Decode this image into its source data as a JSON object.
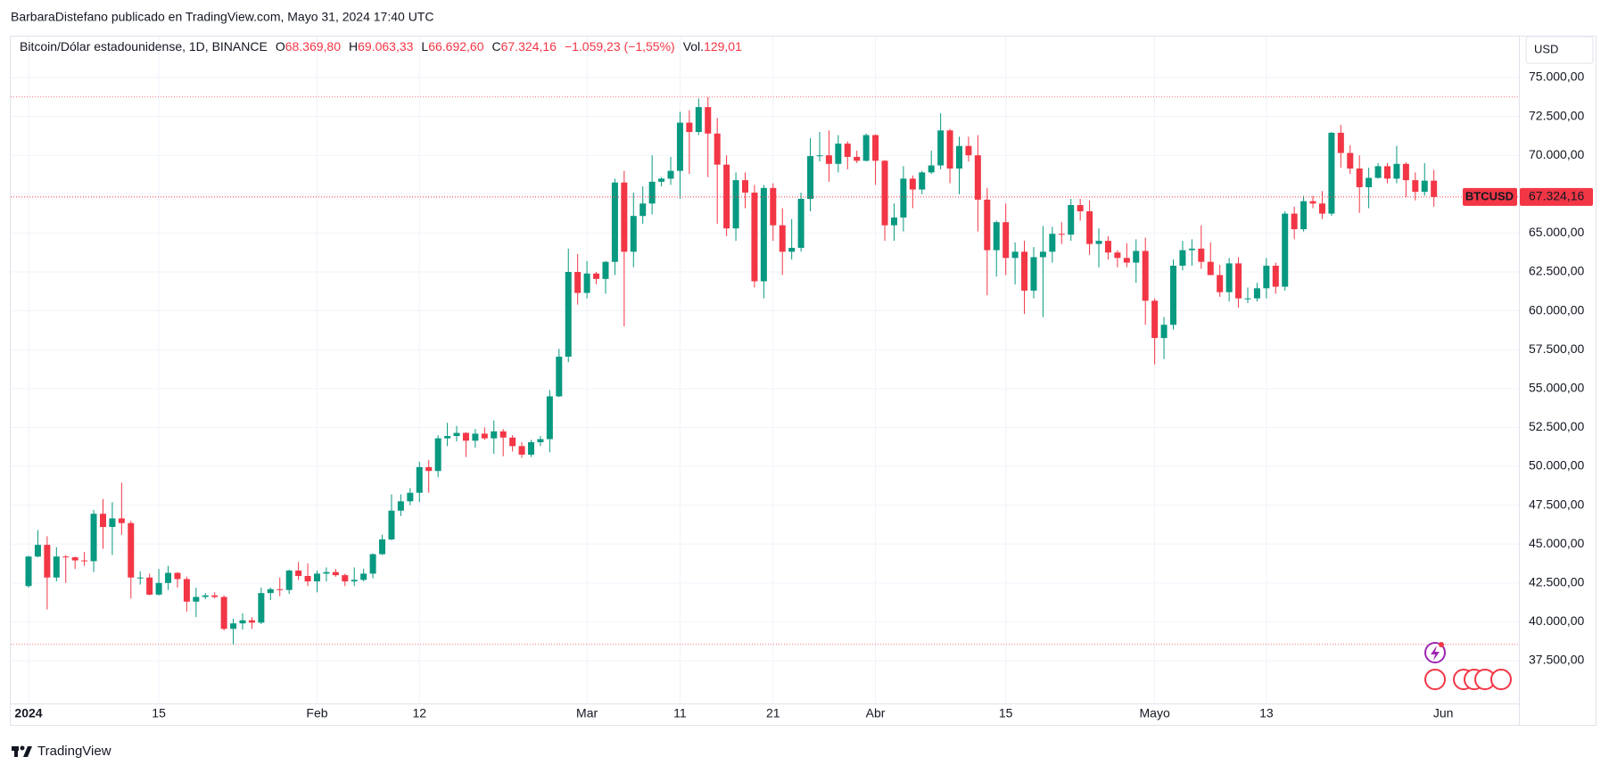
{
  "header": {
    "attribution": "BarbaraDistefano publicado en TradingView.com, Mayo 31, 2024 17:40 UTC",
    "symbol": "Bitcoin/Dólar estadounidense, 1D, BINANCE",
    "fields": [
      {
        "key": "O",
        "value": "68.369,80"
      },
      {
        "key": "H",
        "value": "69.063,33"
      },
      {
        "key": "L",
        "value": "66.692,60"
      },
      {
        "key": "C",
        "value": "67.324,16"
      }
    ],
    "change": "−1.059,23 (−1,55%)",
    "volume_key": "Vol.",
    "volume": "129,01",
    "currency": "USD",
    "footer_brand": "TradingView"
  },
  "chart_data": {
    "type": "candlestick",
    "up_color": "#089981",
    "down_color": "#f23645",
    "ylim": [
      34750,
      77350
    ],
    "yticks": [
      {
        "value": 37500,
        "label": "37.500,00"
      },
      {
        "value": 40000,
        "label": "40.000,00"
      },
      {
        "value": 42500,
        "label": "42.500,00"
      },
      {
        "value": 45000,
        "label": "45.000,00"
      },
      {
        "value": 47500,
        "label": "47.500,00"
      },
      {
        "value": 50000,
        "label": "50.000,00"
      },
      {
        "value": 52500,
        "label": "52.500,00"
      },
      {
        "value": 55000,
        "label": "55.000,00"
      },
      {
        "value": 57500,
        "label": "57.500,00"
      },
      {
        "value": 60000,
        "label": "60.000,00"
      },
      {
        "value": 62500,
        "label": "62.500,00"
      },
      {
        "value": 65000,
        "label": "65.000,00"
      },
      {
        "value": 67500,
        "label": "67.500,00"
      },
      {
        "value": 70000,
        "label": "70.000,00"
      },
      {
        "value": 72500,
        "label": "72.500,00"
      },
      {
        "value": 75000,
        "label": "75.000,00"
      }
    ],
    "grid": true,
    "symbol_tag": "BTCUSD",
    "last_price": {
      "value": 67324.16,
      "label": "67.324,16"
    },
    "x_axis_end_label": "Jun",
    "categories": [
      "2024",
      null,
      null,
      null,
      null,
      null,
      null,
      null,
      null,
      null,
      null,
      null,
      null,
      null,
      "15",
      null,
      null,
      null,
      null,
      null,
      null,
      null,
      null,
      null,
      null,
      null,
      null,
      null,
      null,
      null,
      null,
      "Feb",
      null,
      null,
      null,
      null,
      null,
      null,
      null,
      null,
      null,
      null,
      "12",
      null,
      null,
      null,
      null,
      null,
      null,
      null,
      null,
      null,
      null,
      null,
      null,
      null,
      null,
      null,
      null,
      null,
      "Mar",
      null,
      null,
      null,
      null,
      null,
      null,
      null,
      null,
      null,
      "11",
      null,
      null,
      null,
      null,
      null,
      null,
      null,
      null,
      null,
      "21",
      null,
      null,
      null,
      null,
      null,
      null,
      null,
      null,
      null,
      null,
      "Abr",
      null,
      null,
      null,
      null,
      null,
      null,
      null,
      null,
      null,
      null,
      null,
      null,
      null,
      "15",
      null,
      null,
      null,
      null,
      null,
      null,
      null,
      null,
      null,
      null,
      null,
      null,
      null,
      null,
      null,
      "Mayo",
      null,
      null,
      null,
      null,
      null,
      null,
      null,
      null,
      null,
      null,
      null,
      "13",
      null,
      null,
      null,
      null,
      null,
      null,
      null,
      null,
      null,
      null,
      null,
      null,
      null,
      null,
      null,
      null,
      null,
      null
    ],
    "open": [
      42300,
      44200,
      44950,
      42850,
      44200,
      44150,
      43950,
      43900,
      46950,
      46100,
      46650,
      46350,
      42850,
      42850,
      41750,
      42500,
      43150,
      42750,
      41300,
      41600,
      41700,
      41600,
      39550,
      39900,
      40100,
      39950,
      41850,
      42100,
      42050,
      43300,
      42950,
      42600,
      43100,
      43200,
      43000,
      42600,
      42700,
      43100,
      44350,
      45300,
      47150,
      47750,
      48300,
      49950,
      49700,
      51800,
      51950,
      52150,
      51650,
      52100,
      51800,
      52250,
      51850,
      51300,
      50750,
      51550,
      51750,
      54500,
      57050,
      62500,
      61150,
      62400,
      62050,
      63150,
      68250,
      63800,
      66100,
      66900,
      68300,
      68500,
      69000,
      72100,
      71500,
      73100,
      71400,
      69400,
      65300,
      68400,
      67600,
      61900,
      67900,
      65500,
      63800,
      64050,
      67200,
      69950,
      70000,
      69450,
      70750,
      69900,
      69650,
      71300,
      69650,
      65500,
      66000,
      68500,
      67800,
      68900,
      69350,
      71600,
      69150,
      70600,
      70000,
      67150,
      63900,
      65700,
      63400,
      63800,
      61300,
      63450,
      63800,
      64950,
      64900,
      66800,
      66400,
      64300,
      64500,
      63750,
      63400,
      63100,
      63850,
      60650,
      58250,
      59100,
      62900,
      63900,
      64000,
      63150,
      62300,
      61200,
      63050,
      60800,
      60800,
      61450,
      62900,
      61550,
      66250,
      65250,
      67050,
      66900,
      66250,
      71450,
      70150,
      69150,
      67950,
      68550,
      69300,
      68500,
      69450,
      68400,
      67650,
      68369.8
    ],
    "high": [
      44250,
      45900,
      45500,
      44800,
      44300,
      44200,
      44500,
      47200,
      47900,
      47700,
      48950,
      46500,
      43250,
      43100,
      43400,
      43600,
      43200,
      42900,
      42200,
      41850,
      41900,
      41700,
      40200,
      40550,
      40300,
      42200,
      42200,
      42850,
      43350,
      43850,
      43750,
      43300,
      43500,
      43400,
      43100,
      43500,
      43400,
      44400,
      45600,
      48200,
      48200,
      48600,
      50300,
      50400,
      52000,
      52800,
      52600,
      52200,
      52400,
      52500,
      52950,
      52400,
      52000,
      51550,
      51700,
      51950,
      54900,
      57550,
      64000,
      63650,
      63200,
      62500,
      63200,
      68500,
      69000,
      67600,
      68000,
      70000,
      68600,
      69900,
      72800,
      72900,
      73650,
      73750,
      72400,
      70000,
      68900,
      68900,
      68100,
      68100,
      68200,
      66600,
      65900,
      67600,
      71100,
      71500,
      71600,
      71300,
      70900,
      70300,
      71400,
      71350,
      69700,
      66900,
      69300,
      68700,
      69000,
      70300,
      72700,
      71700,
      71200,
      71200,
      71300,
      67900,
      65800,
      66900,
      64400,
      64500,
      64100,
      65450,
      65400,
      65700,
      67200,
      67200,
      67100,
      65300,
      64800,
      63900,
      64350,
      64600,
      64700,
      60800,
      59600,
      63300,
      64500,
      64600,
      65500,
      64400,
      62950,
      63400,
      63450,
      61500,
      61800,
      63400,
      63100,
      66400,
      66700,
      67400,
      67400,
      67700,
      71500,
      71950,
      70650,
      70000,
      69200,
      69500,
      69500,
      70600,
      69550,
      68900,
      69500,
      69063.33
    ],
    "low": [
      42200,
      44150,
      40800,
      42600,
      42500,
      43400,
      43600,
      43200,
      44700,
      44300,
      45600,
      41500,
      42400,
      41700,
      41700,
      42050,
      42200,
      40650,
      40300,
      41450,
      41500,
      39450,
      38550,
      39500,
      39550,
      39850,
      41400,
      41650,
      41800,
      42700,
      42300,
      41900,
      42600,
      42900,
      42300,
      42300,
      42600,
      42800,
      44300,
      45250,
      46800,
      47500,
      47700,
      48300,
      49300,
      51300,
      51600,
      50600,
      51200,
      51700,
      50800,
      50650,
      50950,
      50550,
      50600,
      51300,
      50900,
      54450,
      56700,
      60400,
      60800,
      61700,
      61100,
      62300,
      59000,
      62800,
      65600,
      66200,
      68000,
      68100,
      67200,
      68800,
      71300,
      68600,
      65600,
      64800,
      64500,
      66600,
      61500,
      60800,
      64500,
      62300,
      63300,
      63800,
      66400,
      69600,
      68300,
      68900,
      69100,
      69500,
      69600,
      68100,
      64500,
      64500,
      65100,
      66600,
      67500,
      68800,
      69100,
      68200,
      67500,
      69600,
      65100,
      61000,
      62200,
      62300,
      61700,
      59800,
      60800,
      59600,
      63100,
      64300,
      64500,
      65800,
      63600,
      62800,
      63300,
      62800,
      62800,
      61800,
      59100,
      56550,
      56900,
      58800,
      62600,
      62900,
      62700,
      62300,
      60900,
      60600,
      60200,
      60500,
      60600,
      60800,
      61100,
      61300,
      64600,
      65100,
      66600,
      65900,
      66100,
      69200,
      68800,
      66300,
      66600,
      68500,
      68200,
      68200,
      67300,
      67100,
      67400,
      66692.6
    ],
    "close": [
      44200,
      44950,
      42850,
      44200,
      44150,
      43950,
      43900,
      46950,
      46100,
      46650,
      46350,
      42850,
      42850,
      41750,
      42500,
      43150,
      42750,
      41300,
      41600,
      41700,
      41600,
      39550,
      39900,
      40100,
      39950,
      41850,
      42100,
      42050,
      43300,
      42950,
      42600,
      43100,
      43200,
      43000,
      42600,
      42700,
      43100,
      44350,
      45300,
      47150,
      47750,
      48300,
      49950,
      49700,
      51800,
      51950,
      52150,
      51650,
      52100,
      51800,
      52250,
      51850,
      51300,
      50750,
      51550,
      51750,
      54500,
      57050,
      62500,
      61150,
      62400,
      62050,
      63150,
      68250,
      63800,
      66100,
      66900,
      68300,
      68500,
      69000,
      72100,
      71500,
      73100,
      71400,
      69400,
      65300,
      68400,
      67600,
      61900,
      67900,
      65500,
      63800,
      64050,
      67200,
      69950,
      70000,
      69450,
      70750,
      69900,
      69650,
      71300,
      69650,
      65500,
      66000,
      68500,
      67800,
      68900,
      69350,
      71600,
      69150,
      70600,
      70000,
      67150,
      63900,
      65700,
      63400,
      63800,
      61300,
      63450,
      63800,
      64950,
      64900,
      66800,
      66400,
      64300,
      64500,
      63750,
      63400,
      63100,
      63850,
      60650,
      58250,
      59100,
      62900,
      63900,
      64000,
      63150,
      62300,
      61200,
      63050,
      60800,
      60800,
      61450,
      62900,
      61550,
      66250,
      65250,
      67050,
      66900,
      66250,
      71450,
      70150,
      69150,
      67950,
      68550,
      69300,
      68500,
      69450,
      68400,
      67650,
      68369.8,
      67324.16
    ]
  }
}
